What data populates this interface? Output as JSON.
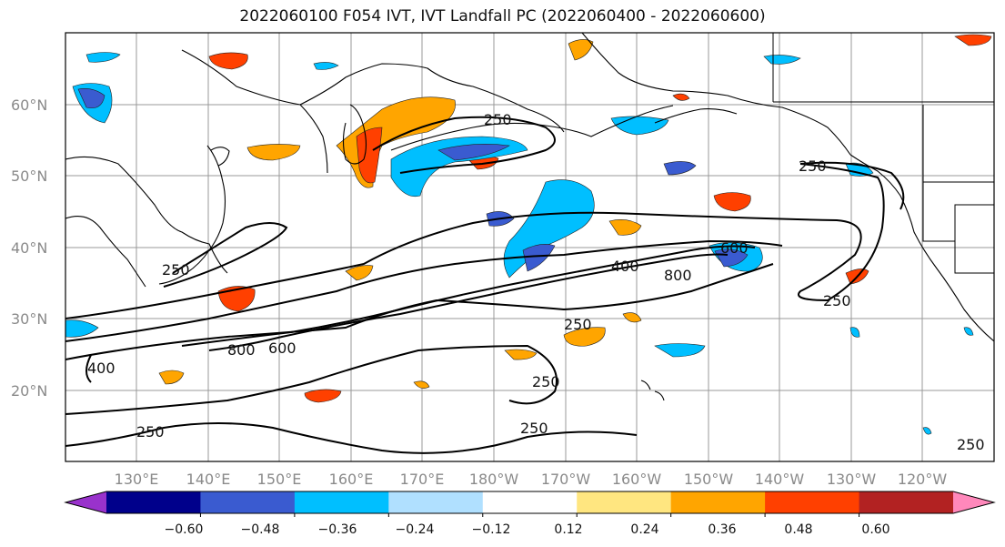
{
  "title": "2022060100 F054 IVT, IVT Landfall PC (2022060400 - 2022060600)",
  "map": {
    "lat_labels": [
      "60°N",
      "50°N",
      "40°N",
      "30°N",
      "20°N"
    ],
    "lon_labels": [
      "130°E",
      "140°E",
      "150°E",
      "160°E",
      "170°E",
      "180°W",
      "170°W",
      "160°W",
      "150°W",
      "140°W",
      "130°W",
      "120°W"
    ],
    "contour_labels": [
      "250",
      "250",
      "250",
      "250",
      "250",
      "250",
      "250",
      "250",
      "400",
      "400",
      "600",
      "600",
      "800",
      "800"
    ]
  },
  "colorbar": {
    "ticks": [
      "−0.60",
      "−0.48",
      "−0.36",
      "−0.24",
      "−0.12",
      "0.12",
      "0.24",
      "0.36",
      "0.48",
      "0.60"
    ],
    "colors": [
      "#9932cc",
      "#00008b",
      "#3a5bd0",
      "#00bfff",
      "#b0e0ff",
      "#ffffff",
      "#ffe680",
      "#ffa500",
      "#ff4000",
      "#b22222",
      "#ff88bb"
    ]
  }
}
